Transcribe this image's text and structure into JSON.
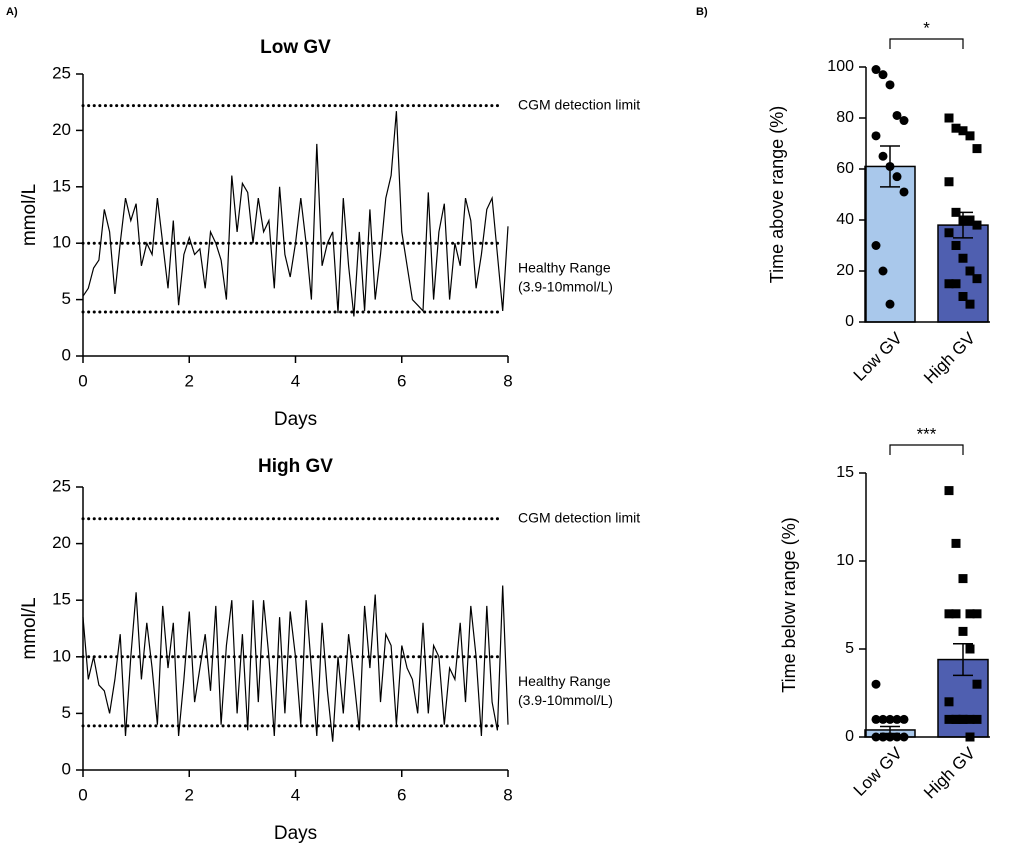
{
  "panel_labels": [
    "A)",
    "B)"
  ],
  "chart_data": [
    {
      "type": "line",
      "title": "Low GV",
      "xlabel": "Days",
      "ylabel": "mmol/L",
      "color": "#000000",
      "x": [
        0,
        0.1,
        0.2,
        0.3,
        0.4,
        0.5,
        0.6,
        0.7,
        0.8,
        0.9,
        1,
        1.1,
        1.2,
        1.3,
        1.4,
        1.5,
        1.6,
        1.7,
        1.8,
        1.9,
        2,
        2.1,
        2.2,
        2.3,
        2.4,
        2.5,
        2.6,
        2.7,
        2.8,
        2.9,
        3,
        3.1,
        3.2,
        3.3,
        3.4,
        3.5,
        3.6,
        3.7,
        3.8,
        3.9,
        4,
        4.1,
        4.2,
        4.3,
        4.4,
        4.5,
        4.6,
        4.7,
        4.8,
        4.9,
        5,
        5.1,
        5.2,
        5.3,
        5.4,
        5.5,
        5.6,
        5.7,
        5.8,
        5.9,
        6,
        6.1,
        6.2,
        6.3,
        6.4,
        6.5,
        6.6,
        6.7,
        6.8,
        6.9,
        7,
        7.1,
        7.2,
        7.3,
        7.4,
        7.5,
        7.6,
        7.7,
        7.8,
        7.9,
        8
      ],
      "values": [
        5.3,
        6,
        7.8,
        8.5,
        13,
        11,
        5.5,
        10,
        14,
        12,
        13.5,
        8,
        10,
        9,
        14,
        10,
        6,
        12,
        4.5,
        9,
        10.5,
        9,
        9.5,
        6,
        11,
        10,
        8.5,
        5,
        16,
        11,
        15.3,
        14.5,
        10,
        14,
        11,
        12,
        6,
        15,
        9,
        7,
        10,
        14,
        10,
        5,
        18.8,
        8,
        10,
        11,
        3.8,
        14,
        8,
        3.5,
        11,
        4,
        13,
        5,
        9,
        14,
        16,
        21.7,
        11,
        8,
        5,
        4.5,
        4,
        14.5,
        5,
        11,
        13.5,
        5,
        10,
        8,
        14,
        12,
        6,
        9,
        13,
        14,
        9,
        4,
        11.5
      ],
      "xlim": [
        0,
        8
      ],
      "xticks": [
        0,
        2,
        4,
        6,
        8
      ],
      "ylim": [
        0,
        25
      ],
      "yticks": [
        0,
        5,
        10,
        15,
        20,
        25
      ],
      "reference_lines": [
        {
          "value": 22.2,
          "label": "CGM detection limit"
        },
        {
          "value": 10
        },
        {
          "value": 3.9
        }
      ],
      "annotation": [
        "Healthy Range",
        "(3.9-10mmol/L)"
      ]
    },
    {
      "type": "line",
      "title": "High GV",
      "xlabel": "Days",
      "ylabel": "mmol/L",
      "color": "#000000",
      "x": [
        0,
        0.1,
        0.2,
        0.3,
        0.4,
        0.5,
        0.6,
        0.7,
        0.8,
        0.9,
        1,
        1.1,
        1.2,
        1.3,
        1.4,
        1.5,
        1.6,
        1.7,
        1.8,
        1.9,
        2,
        2.1,
        2.2,
        2.3,
        2.4,
        2.5,
        2.6,
        2.7,
        2.8,
        2.9,
        3,
        3.1,
        3.2,
        3.3,
        3.4,
        3.5,
        3.6,
        3.7,
        3.8,
        3.9,
        4,
        4.1,
        4.2,
        4.3,
        4.4,
        4.5,
        4.6,
        4.7,
        4.8,
        4.9,
        5,
        5.1,
        5.2,
        5.3,
        5.4,
        5.5,
        5.6,
        5.7,
        5.8,
        5.9,
        6,
        6.1,
        6.2,
        6.3,
        6.4,
        6.5,
        6.6,
        6.7,
        6.8,
        6.9,
        7,
        7.1,
        7.2,
        7.3,
        7.4,
        7.5,
        7.6,
        7.7,
        7.8,
        7.9,
        8
      ],
      "values": [
        13.5,
        8,
        10,
        7.5,
        7,
        5,
        8,
        12,
        3,
        10,
        15.7,
        8,
        13,
        9,
        4,
        14.5,
        9,
        13,
        3,
        8,
        14,
        6,
        9,
        12,
        7,
        14.5,
        4,
        11,
        15,
        5,
        12,
        3.5,
        15,
        6,
        15,
        10,
        3,
        13.5,
        5,
        14,
        10,
        4,
        15,
        9,
        3,
        13,
        7,
        2.5,
        10,
        5,
        12,
        8,
        3.5,
        14.5,
        9,
        15.5,
        6,
        12,
        11,
        4,
        11,
        9,
        8,
        5,
        13,
        5,
        11,
        10,
        4,
        9,
        8,
        13,
        6,
        14.5,
        10,
        3,
        14.5,
        6,
        3.5,
        16.3,
        4
      ],
      "xlim": [
        0,
        8
      ],
      "xticks": [
        0,
        2,
        4,
        6,
        8
      ],
      "ylim": [
        0,
        25
      ],
      "yticks": [
        0,
        5,
        10,
        15,
        20,
        25
      ],
      "reference_lines": [
        {
          "value": 22.2,
          "label": "CGM detection limit"
        },
        {
          "value": 10
        },
        {
          "value": 3.9
        }
      ],
      "annotation": [
        "Healthy Range",
        "(3.9-10mmol/L)"
      ]
    },
    {
      "type": "bar",
      "ylabel": "Time above range (%)",
      "categories": [
        "Low GV",
        "High GV"
      ],
      "values": [
        61,
        38
      ],
      "errors": [
        8,
        5
      ],
      "colors": [
        "#a9c8eb",
        "#4f5fb0"
      ],
      "markers": [
        "circle",
        "square"
      ],
      "points": [
        [
          99,
          97,
          93,
          81,
          79,
          73,
          65,
          61,
          57,
          51,
          30,
          20,
          7
        ],
        [
          80,
          76,
          75,
          73,
          68,
          55,
          43,
          40,
          40,
          38,
          35,
          30,
          25,
          20,
          17,
          15,
          15,
          10,
          7
        ]
      ],
      "ylim": [
        0,
        100
      ],
      "yticks": [
        0,
        20,
        40,
        60,
        80,
        100
      ],
      "significance": "*"
    },
    {
      "type": "bar",
      "ylabel": "Time below range (%)",
      "categories": [
        "Low GV",
        "High GV"
      ],
      "values": [
        0.4,
        4.4
      ],
      "errors": [
        0.2,
        0.9
      ],
      "colors": [
        "#a9c8eb",
        "#4f5fb0"
      ],
      "markers": [
        "circle",
        "square"
      ],
      "points": [
        [
          3,
          1,
          1,
          1,
          1,
          1,
          0,
          0,
          0,
          0,
          0,
          0,
          0
        ],
        [
          14,
          11,
          9,
          7,
          7,
          7,
          7,
          6,
          5,
          3,
          2,
          1,
          1,
          1,
          1,
          1,
          1,
          1,
          0
        ]
      ],
      "ylim": [
        0,
        15
      ],
      "yticks": [
        0,
        5,
        10,
        15
      ],
      "significance": "***"
    }
  ]
}
